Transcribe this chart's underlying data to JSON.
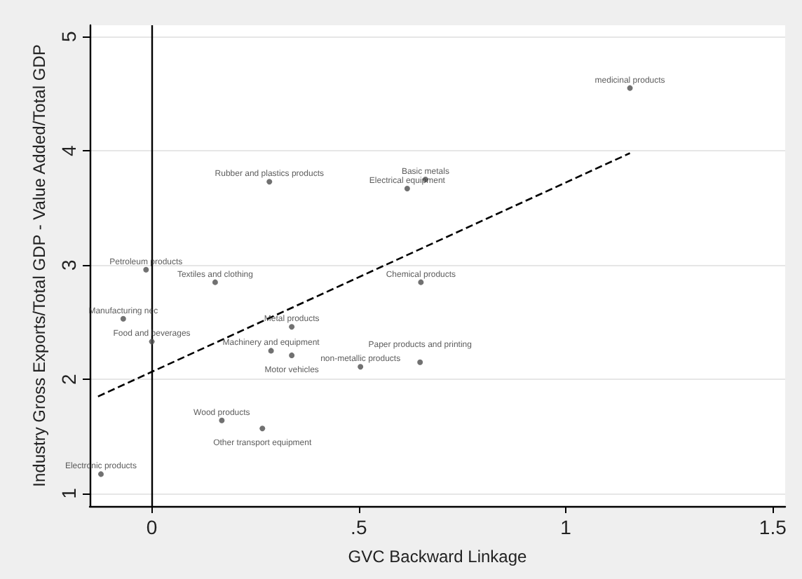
{
  "chart_data": {
    "type": "scatter",
    "xlabel": "GVC Backward Linkage",
    "ylabel": "Industry Gross Exports/Total GDP - Value Added/Total GDP",
    "xlim": [
      -0.15,
      1.53
    ],
    "ylim": [
      0.89,
      5.1
    ],
    "xticks": [
      {
        "value": 0,
        "label": "0"
      },
      {
        "value": 0.5,
        "label": ".5"
      },
      {
        "value": 1,
        "label": "1"
      },
      {
        "value": 1.5,
        "label": "1.5"
      }
    ],
    "yticks": [
      1,
      2,
      3,
      4,
      5
    ],
    "grid": "y",
    "marker": "circle",
    "ref_lines": [
      {
        "axis": "x",
        "value": 0,
        "color": "#000000"
      }
    ],
    "series": [
      {
        "type": "scatter",
        "color": "#4d4d4d",
        "x": [
          1.155,
          0.284,
          0.661,
          0.617,
          -0.014,
          0.153,
          0.65,
          -0.069,
          0,
          0.338,
          0.288,
          0.338,
          0.504,
          0.648,
          0.169,
          0.267,
          -0.123
        ],
        "values": [
          4.55,
          3.73,
          3.75,
          3.67,
          2.96,
          2.85,
          2.85,
          2.53,
          2.33,
          2.46,
          2.25,
          2.21,
          2.11,
          2.15,
          1.64,
          1.57,
          1.17
        ]
      },
      {
        "type": "line",
        "color": "#000000",
        "line_style": "dashed",
        "marker": "none",
        "x": [
          -0.13,
          1.155
        ],
        "values": [
          1.85,
          3.98
        ]
      }
    ],
    "annotations": [
      {
        "text": "medicinal products",
        "x": 1.155,
        "y": 4.55
      },
      {
        "text": "Rubber and plastics products",
        "x": 0.284,
        "y": 3.73
      },
      {
        "text": "Basic metals",
        "x": 0.661,
        "y": 3.75
      },
      {
        "text": "Electrical equipment",
        "x": 0.617,
        "y": 3.67
      },
      {
        "text": "Petroleum products",
        "x": -0.014,
        "y": 2.96
      },
      {
        "text": "Textiles and clothing",
        "x": 0.153,
        "y": 2.85
      },
      {
        "text": "Chemical products",
        "x": 0.65,
        "y": 2.85
      },
      {
        "text": "Manufacturing nec",
        "x": -0.069,
        "y": 2.53
      },
      {
        "text": "Food and beverages",
        "x": 0,
        "y": 2.33
      },
      {
        "text": "Metal products",
        "x": 0.338,
        "y": 2.46
      },
      {
        "text": "Machinery and equipment",
        "x": 0.288,
        "y": 2.25
      },
      {
        "text": "Motor vehicles",
        "x": 0.338,
        "y": 2.21
      },
      {
        "text": "non-metallic products",
        "x": 0.504,
        "y": 2.11
      },
      {
        "text": "Paper products and printing",
        "x": 0.648,
        "y": 2.15
      },
      {
        "text": "Wood products",
        "x": 0.169,
        "y": 1.64
      },
      {
        "text": "Other transport equipment",
        "x": 0.267,
        "y": 1.57
      },
      {
        "text": "Electronic products",
        "x": -0.123,
        "y": 1.17
      }
    ]
  }
}
